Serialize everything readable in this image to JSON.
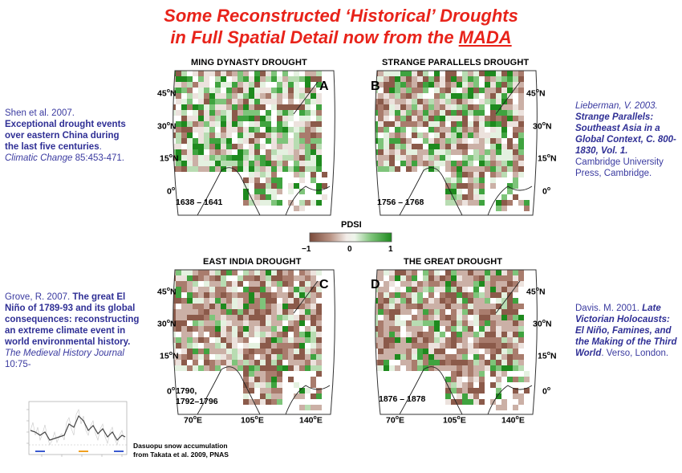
{
  "title": {
    "line1": "Some Reconstructed ‘Historical’ Droughts",
    "line2_prefix": "in Full Spatial Detail now from the ",
    "line2_link": "MADA"
  },
  "colors": {
    "title": "#e8231a",
    "dry": "#8b5a4a",
    "wet": "#1e8a1e",
    "reference": "#3a3aa0"
  },
  "maps": [
    {
      "id": "A",
      "title": "MING DYNASTY DROUGHT",
      "letter": "A",
      "years": [
        "1638 – 1641"
      ],
      "dry_bias": 0.25,
      "wet_bias": 0.35
    },
    {
      "id": "B",
      "title": "STRANGE PARALLELS DROUGHT",
      "letter": "B",
      "years": [
        "1756 – 1768"
      ],
      "dry_bias": 0.4,
      "wet_bias": 0.3
    },
    {
      "id": "C",
      "title": "EAST INDIA DROUGHT",
      "letter": "C",
      "years": [
        "1790,",
        "1792–1796"
      ],
      "dry_bias": 0.6,
      "wet_bias": 0.15
    },
    {
      "id": "D",
      "title": "THE GREAT DROUGHT",
      "letter": "D",
      "years": [
        "1876 – 1878"
      ],
      "dry_bias": 0.6,
      "wet_bias": 0.2
    }
  ],
  "latitudes": [
    "45",
    "30",
    "15",
    "0"
  ],
  "longitudes": [
    "70",
    "105",
    "140"
  ],
  "lat_suffix": "N",
  "lon_suffix": "E",
  "degree": "o",
  "legend": {
    "title": "PDSI",
    "ticks": [
      "−1",
      "0",
      "1"
    ]
  },
  "references": {
    "shen": {
      "authors": "Shen et al. 2007.",
      "title": "Exceptional drought events over eastern China during the last five centuries",
      "journal": "Climatic Change",
      "issue": "85:453-471."
    },
    "lieberman": {
      "authors": "Lieberman, V. 2003.",
      "title": "Strange Parallels: Southeast Asia in a Global Context, C. 800-1830, Vol. 1.",
      "publisher": "Cambridge University Press, Cambridge."
    },
    "grove": {
      "authors": "Grove, R. 2007.",
      "title": "The great El Niño of 1789-93 and its global consequences: reconstructing an extreme climate event in world environmental history.",
      "journal": "The Medieval History Journal",
      "issue": "10:75-"
    },
    "davis": {
      "authors": "Davis. M. 2001.",
      "title": "Late Victorian Holocausts: El Niño, Famines, and the Making of the Third World",
      "publisher": ". Verso, London."
    }
  },
  "inset": {
    "caption_line1": "Dasuopu snow accumulation",
    "caption_line2": "from Takata et al. 2009, PNAS"
  }
}
